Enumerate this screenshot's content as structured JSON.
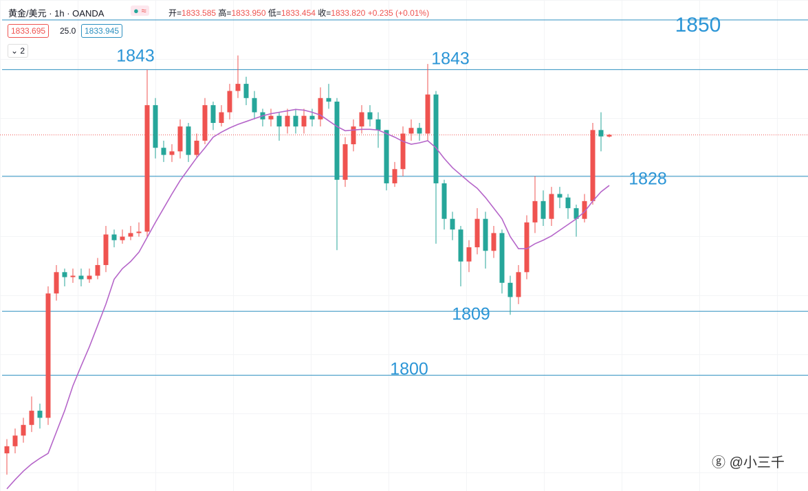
{
  "header": {
    "symbol": "黄金/美元 · 1h · OANDA",
    "ohlc": [
      {
        "label": "开=",
        "value": "1833.585"
      },
      {
        "label": "高=",
        "value": "1833.950"
      },
      {
        "label": "低=",
        "value": "1833.454"
      },
      {
        "label": "收=",
        "value": "1833.820"
      }
    ],
    "change": "+0.235 (+0.01%)",
    "bid": "1833.695",
    "spread": "25.0",
    "ask": "1833.945",
    "indicators": "2"
  },
  "watermark": "@小三千",
  "chart_data": {
    "type": "candlestick",
    "ylim": [
      1783.7,
      1852.8
    ],
    "up_color": "#ef5350",
    "down_color": "#26a69a",
    "open": [
      1789,
      1790,
      1791.5,
      1793,
      1795,
      1794,
      1811.5,
      1814.5,
      1813.8,
      1814,
      1813.5,
      1814,
      1815.5,
      1819.8,
      1819,
      1819.5,
      1820,
      1820.2,
      1838,
      1832,
      1831,
      1831.5,
      1835,
      1831,
      1833,
      1838,
      1835.5,
      1837,
      1840,
      1841,
      1839,
      1837,
      1836,
      1836.5,
      1835,
      1836.5,
      1835,
      1836.5,
      1836,
      1839,
      1838.5,
      1827.5,
      1832.5,
      1835,
      1837,
      1836,
      1834.5,
      1827,
      1829,
      1834,
      1834.8,
      1834,
      1839.5,
      1827,
      1822,
      1820.5,
      1816,
      1818,
      1822,
      1817.5,
      1820,
      1813,
      1811,
      1814.5,
      1821.5,
      1824.5,
      1822,
      1825.5,
      1825,
      1823.5,
      1822,
      1824.5,
      1834.5,
      1833.585
    ],
    "high": [
      1791,
      1792.5,
      1794,
      1797,
      1796,
      1812.5,
      1815.5,
      1815,
      1815,
      1815,
      1815,
      1816.5,
      1821,
      1820.5,
      1820.5,
      1821,
      1821.5,
      1843,
      1839,
      1833,
      1832.5,
      1836,
      1835.5,
      1834,
      1839,
      1838.5,
      1838,
      1841,
      1845,
      1842,
      1840,
      1837.5,
      1837.5,
      1837,
      1837.5,
      1837.5,
      1837.5,
      1837.5,
      1840.5,
      1841,
      1839,
      1833.5,
      1836,
      1838,
      1838,
      1837,
      1834.5,
      1830,
      1835,
      1836,
      1835.5,
      1843.8,
      1840,
      1827.5,
      1823,
      1821,
      1819,
      1823.5,
      1823,
      1821,
      1820.5,
      1814,
      1815.5,
      1822.5,
      1828,
      1826,
      1826.5,
      1826.5,
      1825.5,
      1824,
      1825.5,
      1835.5,
      1837,
      1833.95
    ],
    "low": [
      1786,
      1789,
      1790.5,
      1792,
      1792.5,
      1793,
      1810.5,
      1812.5,
      1813,
      1812.5,
      1813,
      1813.5,
      1814.5,
      1818,
      1818.5,
      1819,
      1819.5,
      1819.5,
      1830.5,
      1830,
      1830,
      1830.5,
      1830,
      1830.5,
      1832.5,
      1834.5,
      1835,
      1836,
      1839,
      1838,
      1836,
      1835,
      1835,
      1833,
      1834,
      1834,
      1834,
      1835,
      1835,
      1837.5,
      1817.6,
      1826.5,
      1831.5,
      1834,
      1835,
      1832,
      1826,
      1826.5,
      1828,
      1833,
      1833,
      1833,
      1818.5,
      1820.5,
      1819,
      1812.5,
      1814.5,
      1817,
      1815,
      1816.5,
      1811.5,
      1808.5,
      1810,
      1813.5,
      1820,
      1821,
      1821,
      1823.5,
      1822,
      1819.5,
      1821.5,
      1824,
      1831.5,
      1833.454
    ],
    "close": [
      1790,
      1791.5,
      1793,
      1795,
      1794,
      1811.5,
      1814.5,
      1813.8,
      1814,
      1813.5,
      1814,
      1815.5,
      1819.8,
      1819,
      1819.5,
      1820,
      1820.2,
      1838,
      1832,
      1831,
      1831.5,
      1835,
      1831,
      1833,
      1838,
      1835.5,
      1837,
      1840,
      1841,
      1839,
      1837,
      1836,
      1836.5,
      1835,
      1836.5,
      1835,
      1836.5,
      1836,
      1839,
      1838.5,
      1827.5,
      1832.5,
      1835,
      1837,
      1836,
      1834.5,
      1827,
      1829,
      1834,
      1834.8,
      1834,
      1839.5,
      1827,
      1822,
      1820.5,
      1816,
      1818,
      1822,
      1817.5,
      1820,
      1813,
      1811,
      1814.5,
      1821.5,
      1824.5,
      1822,
      1825.5,
      1825,
      1823.5,
      1822,
      1824.5,
      1834.5,
      1833.6,
      1833.82
    ],
    "ma": {
      "color": "#b565c9",
      "values": [
        1784,
        1785.3,
        1786.5,
        1787.5,
        1788.3,
        1789,
        1792,
        1795,
        1798.5,
        1801.3,
        1804,
        1807,
        1810,
        1813.5,
        1815,
        1816,
        1817.3,
        1819.4,
        1821.5,
        1823.5,
        1825.5,
        1827.4,
        1829,
        1830.6,
        1832,
        1833.5,
        1834.2,
        1834.8,
        1835.3,
        1835.7,
        1836.1,
        1836.5,
        1836.8,
        1837,
        1837.2,
        1837.4,
        1837.3,
        1837,
        1836.6,
        1835.8,
        1835,
        1834.4,
        1834.5,
        1834.6,
        1834.6,
        1834.5,
        1834,
        1833.5,
        1832.9,
        1832.5,
        1832.7,
        1833,
        1832,
        1830.5,
        1829.2,
        1828.2,
        1827.2,
        1826.3,
        1825,
        1823.5,
        1822,
        1819.5,
        1817.8,
        1817.8,
        1818.5,
        1819,
        1819.6,
        1820.4,
        1821.2,
        1822,
        1823,
        1824.5,
        1825.8,
        1826.7
      ]
    },
    "levels": [
      1850,
      1843,
      1828,
      1809,
      1800
    ],
    "level_color": "#2b8fbf"
  }
}
